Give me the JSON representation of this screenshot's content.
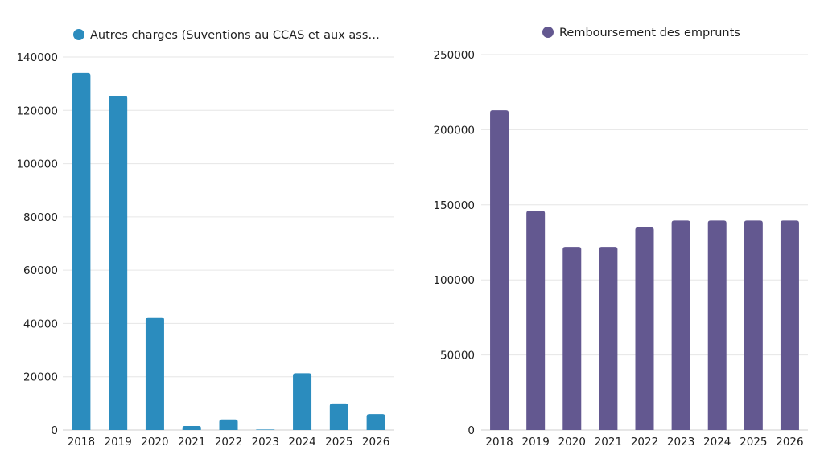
{
  "chart_data": [
    {
      "type": "bar",
      "categories": [
        "2018",
        "2019",
        "2020",
        "2021",
        "2022",
        "2023",
        "2024",
        "2025",
        "2026"
      ],
      "series": [
        {
          "name": "Autres charges (Suventions au CCAS et aux ass…",
          "values": [
            134000,
            125500,
            42300,
            1500,
            4000,
            200,
            21300,
            10000,
            6000
          ],
          "color": "#2b8cbe"
        }
      ],
      "ylim": [
        0,
        140000
      ],
      "yticks": [
        0,
        20000,
        40000,
        60000,
        80000,
        100000,
        120000,
        140000
      ],
      "ytick_labels": [
        "0",
        "20000",
        "40000",
        "60000",
        "80000",
        "100000",
        "120000",
        "140000"
      ],
      "grid": true,
      "legend": "top-center"
    },
    {
      "type": "bar",
      "categories": [
        "2018",
        "2019",
        "2020",
        "2021",
        "2022",
        "2023",
        "2024",
        "2025",
        "2026"
      ],
      "series": [
        {
          "name": "Remboursement des emprunts",
          "values": [
            213000,
            146000,
            122000,
            122000,
            135000,
            139500,
            139500,
            139500,
            139500
          ],
          "color": "#635890"
        }
      ],
      "ylim": [
        0,
        250000
      ],
      "yticks": [
        0,
        50000,
        100000,
        150000,
        200000,
        250000
      ],
      "ytick_labels": [
        "0",
        "50000",
        "100000",
        "150000",
        "200000",
        "250000"
      ],
      "grid": true,
      "legend": "top-center"
    }
  ],
  "style": {
    "grid_color": "#e6e6e6",
    "axis_color": "#cfcfcf",
    "text_color": "#1f1f1f"
  }
}
